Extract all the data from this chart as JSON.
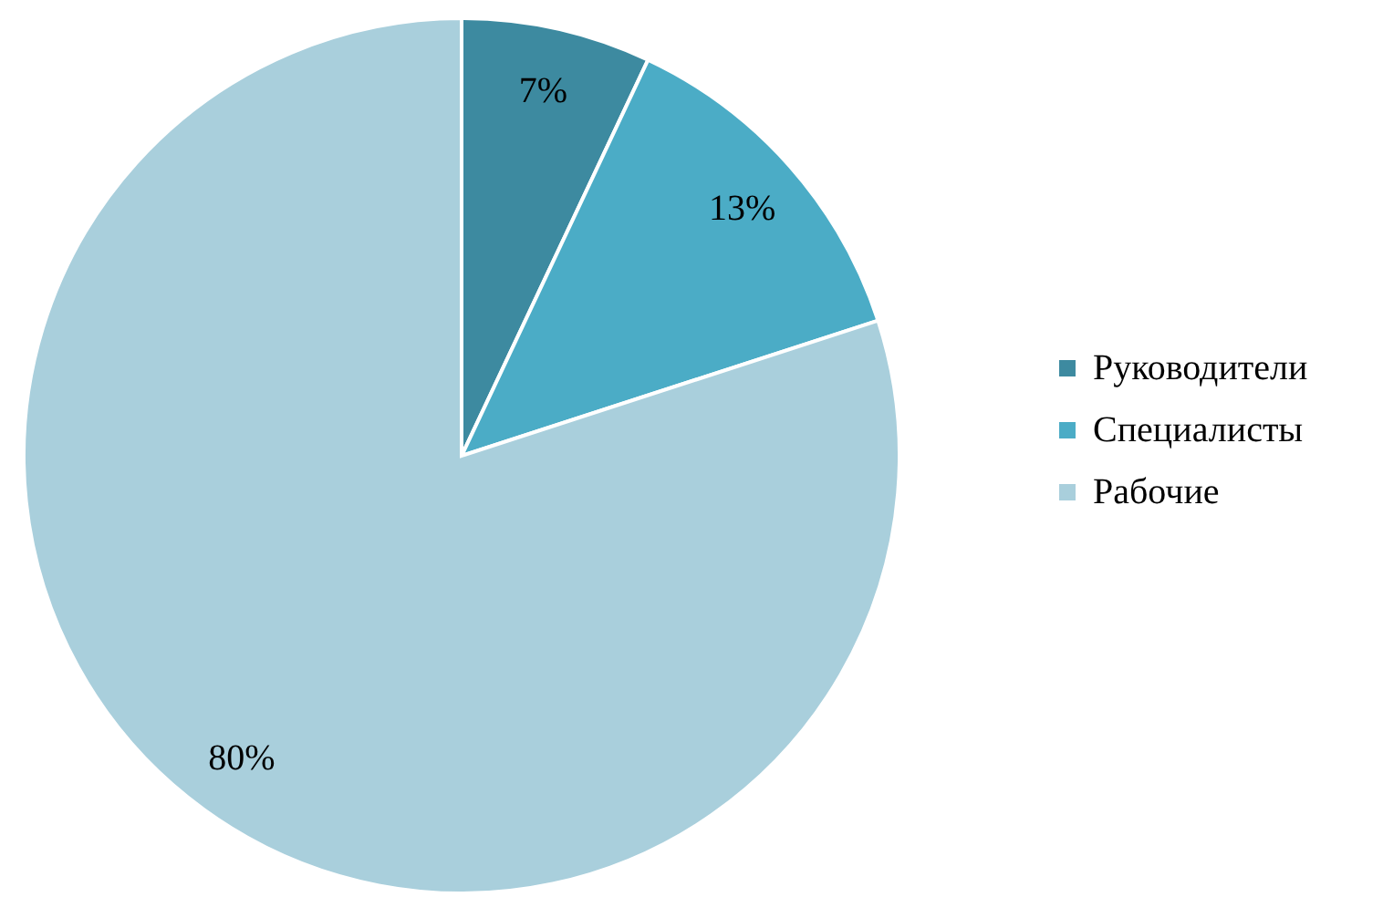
{
  "chart_data": {
    "type": "pie",
    "categories": [
      "Руководители",
      "Специалисты",
      "Рабочие"
    ],
    "values": [
      7,
      13,
      80
    ],
    "colors": [
      "#3d8aa0",
      "#4bacc6",
      "#a9cfdc"
    ],
    "value_labels": [
      "7%",
      "13%",
      "80%"
    ],
    "legend": "right"
  }
}
